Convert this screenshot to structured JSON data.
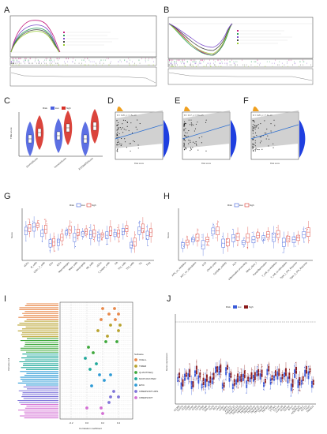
{
  "panels": {
    "a": "A",
    "b": "B",
    "c": "C",
    "d": "D",
    "e": "E",
    "f": "F",
    "g": "G",
    "h": "H",
    "i": "I",
    "j": "J"
  },
  "colors": {
    "low": "#3b5bd9",
    "high": "#d9342b",
    "gsea": [
      "#c41d7f",
      "#2a9d5c",
      "#7a4cc9",
      "#444444",
      "#9acd32"
    ],
    "violin_low": "#4a5fe0",
    "violin_high": "#d73027",
    "scatter": "#111111",
    "fit": "#2c6fd1",
    "band": "#bdbdbd",
    "density": "#1f3fe0",
    "software": [
      "#e8884a",
      "#b8a22e",
      "#3fa83c",
      "#1fa89a",
      "#2f9bd6",
      "#7f74d9",
      "#d36fd4"
    ]
  },
  "legend_risk": {
    "title": "Risk",
    "low": "low",
    "high": "high"
  },
  "c_panel": {
    "ylabel": "TME score",
    "categories": [
      "StromalScore",
      "ImmuneScore",
      "ESTIMATEScore"
    ]
  },
  "d_panel": {
    "stat": "R = 0.26, p = 4.6e-10",
    "xlabel": "Risk score"
  },
  "e_panel": {
    "stat": "R = 0.17, p = 8.3e-05",
    "xlabel": "Risk score"
  },
  "f_panel": {
    "stat": "R = 0.26, p = 7.9e-10",
    "xlabel": "Risk score"
  },
  "g_panel": {
    "ylabel": "Score",
    "categories": [
      "aDCs",
      "B_cells",
      "CD8+_T_cells",
      "DCs",
      "iDCs",
      "Macrophages",
      "Mast_cells",
      "Neutrophils",
      "NK_cells",
      "pDCs",
      "T_helper_cells",
      "Tfh",
      "Th1_cells",
      "Th2_cells",
      "TIL",
      "Treg"
    ]
  },
  "h_panel": {
    "ylabel": "Score",
    "categories": [
      "APC_co_inhibition",
      "APC_co_stimulation",
      "CCR",
      "Check-point",
      "Cytolytic_activity",
      "HLA",
      "Inflammation-promoting",
      "MHC_class_I",
      "Parainflammation",
      "T_cell_co-inhibition",
      "T_cell_co-stimulation",
      "Type_I_IFN_Reponse",
      "Type_II_IFN_Reponse"
    ]
  },
  "i_panel": {
    "ylabel": "Immune cell",
    "xlabel": "Correlation coefficient",
    "legend_title": "Software",
    "software": [
      "XCELL",
      "TIMER",
      "QUANTISEQ",
      "MCPCOUNTER",
      "EPIC",
      "CIBERSORT-ABS",
      "CIBERSORT"
    ],
    "xticks": [
      "-0.2",
      "0.0",
      "0.2",
      "0.4"
    ]
  },
  "j_panel": {
    "ylabel": "Gene expression",
    "categories": [
      "CD200",
      "CD276",
      "CD28",
      "CD40",
      "CD44",
      "CD48",
      "CD70",
      "CD80",
      "CD86",
      "HHLA2",
      "ICOS",
      "IDO1",
      "LAG3",
      "LAIR1",
      "NRP1",
      "PDCD1",
      "TNFRSF14",
      "TNFRSF18",
      "TNFRSF25",
      "TNFRSF4",
      "TNFRSF8",
      "TNFRSF9",
      "TNFSF14",
      "TNFSF15",
      "TNFSF18",
      "TNFSF4",
      "TNFSF9",
      "VSIR",
      "VTCN1",
      "CTLA4",
      "LGALS9",
      "CD160",
      "CD244",
      "BTLA",
      "IDO2",
      "ADORA2A",
      "BTNL2",
      "CD274",
      "TIGIT",
      "TMIGD2"
    ]
  }
}
